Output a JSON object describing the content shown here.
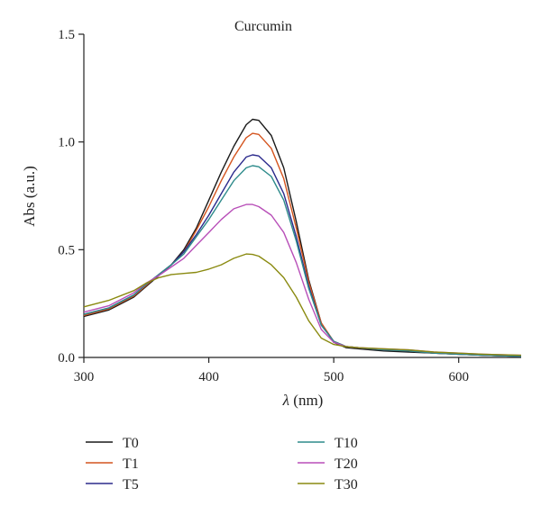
{
  "chart_data": {
    "type": "line",
    "title": "Curcumin",
    "xlabel_symbol": "λ",
    "xlabel_unit": " (nm)",
    "ylabel": "Abs (a.u.)",
    "xlim": [
      300,
      650
    ],
    "ylim": [
      0,
      1.5
    ],
    "x_ticks": [
      300,
      400,
      500,
      600
    ],
    "x_tick_labels": [
      "300",
      "400",
      "500",
      "600"
    ],
    "y_ticks": [
      0,
      0.5,
      1.0,
      1.5
    ],
    "y_tick_labels": [
      "0.0",
      "0.5",
      "1.0",
      "1.5"
    ],
    "grid": false,
    "legend_position": "bottom",
    "x": [
      300,
      320,
      340,
      350,
      360,
      370,
      380,
      390,
      400,
      410,
      420,
      430,
      435,
      440,
      450,
      460,
      470,
      480,
      490,
      500,
      510,
      520,
      540,
      560,
      580,
      600,
      620,
      650
    ],
    "series": [
      {
        "name": "T0",
        "color": "#1a1a1a",
        "values": [
          0.19,
          0.22,
          0.28,
          0.33,
          0.38,
          0.43,
          0.5,
          0.6,
          0.73,
          0.86,
          0.98,
          1.08,
          1.105,
          1.1,
          1.03,
          0.88,
          0.63,
          0.36,
          0.16,
          0.07,
          0.045,
          0.04,
          0.03,
          0.025,
          0.02,
          0.015,
          0.01,
          0.005
        ]
      },
      {
        "name": "T1",
        "color": "#d4541e",
        "values": [
          0.195,
          0.225,
          0.285,
          0.335,
          0.385,
          0.43,
          0.49,
          0.59,
          0.7,
          0.82,
          0.93,
          1.02,
          1.04,
          1.035,
          0.97,
          0.83,
          0.6,
          0.35,
          0.16,
          0.075,
          0.05,
          0.045,
          0.035,
          0.03,
          0.02,
          0.015,
          0.01,
          0.005
        ]
      },
      {
        "name": "T5",
        "color": "#2b2a8c",
        "values": [
          0.2,
          0.23,
          0.29,
          0.34,
          0.385,
          0.43,
          0.49,
          0.57,
          0.66,
          0.76,
          0.86,
          0.93,
          0.94,
          0.935,
          0.88,
          0.76,
          0.56,
          0.33,
          0.15,
          0.075,
          0.05,
          0.045,
          0.035,
          0.03,
          0.02,
          0.015,
          0.01,
          0.005
        ]
      },
      {
        "name": "T10",
        "color": "#2e8b8b",
        "values": [
          0.2,
          0.23,
          0.29,
          0.34,
          0.385,
          0.43,
          0.48,
          0.56,
          0.64,
          0.73,
          0.82,
          0.88,
          0.89,
          0.885,
          0.84,
          0.73,
          0.54,
          0.32,
          0.15,
          0.075,
          0.05,
          0.045,
          0.035,
          0.03,
          0.02,
          0.015,
          0.01,
          0.005
        ]
      },
      {
        "name": "T20",
        "color": "#b84fb8",
        "values": [
          0.21,
          0.24,
          0.3,
          0.345,
          0.38,
          0.42,
          0.46,
          0.52,
          0.58,
          0.64,
          0.69,
          0.71,
          0.71,
          0.7,
          0.66,
          0.58,
          0.44,
          0.27,
          0.13,
          0.07,
          0.05,
          0.045,
          0.04,
          0.035,
          0.025,
          0.02,
          0.015,
          0.01
        ]
      },
      {
        "name": "T30",
        "color": "#8a8a10",
        "values": [
          0.235,
          0.265,
          0.31,
          0.345,
          0.37,
          0.385,
          0.39,
          0.395,
          0.41,
          0.43,
          0.46,
          0.48,
          0.478,
          0.47,
          0.43,
          0.37,
          0.28,
          0.17,
          0.09,
          0.06,
          0.05,
          0.045,
          0.04,
          0.035,
          0.025,
          0.02,
          0.015,
          0.01
        ]
      }
    ]
  }
}
